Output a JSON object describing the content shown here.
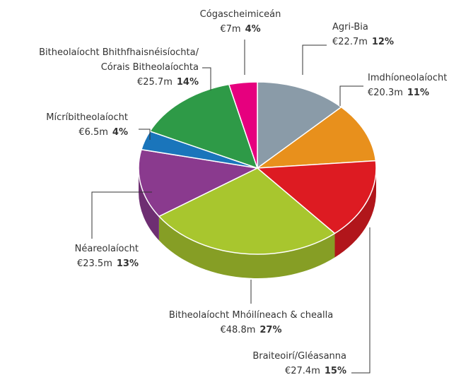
{
  "chart_data": {
    "type": "pie3d",
    "categories": [
      "Agri-Bia",
      "Imdhíoneolaíocht",
      "Braiteoirí/Gléasanna",
      "Bitheolaíocht Mhóilíneach & chealla",
      "Néareolaíocht",
      "Mícríbitheolaíocht",
      "Bitheolaíocht Bhithfhaisnéisíochta/\nCórais Bitheolaíochta",
      "Cógascheimiceán"
    ],
    "values": [
      22.7,
      20.3,
      27.4,
      48.8,
      23.5,
      6.5,
      25.7,
      7
    ],
    "value_labels": [
      "€22.7m",
      "€20.3m",
      "€27.4m",
      "€48.8m",
      "€23.5m",
      "€6.5m",
      "€25.7m",
      "€7m"
    ],
    "percentages": [
      12,
      11,
      15,
      27,
      13,
      4,
      14,
      4
    ],
    "percentage_labels": [
      "12%",
      "11%",
      "15%",
      "27%",
      "13%",
      "4%",
      "14%",
      "4%"
    ],
    "colors": [
      "#8a9ba8",
      "#e8901c",
      "#dd1b22",
      "#a8c62e",
      "#8a3a8e",
      "#1a75bb",
      "#2e9a47",
      "#e6007e"
    ]
  }
}
